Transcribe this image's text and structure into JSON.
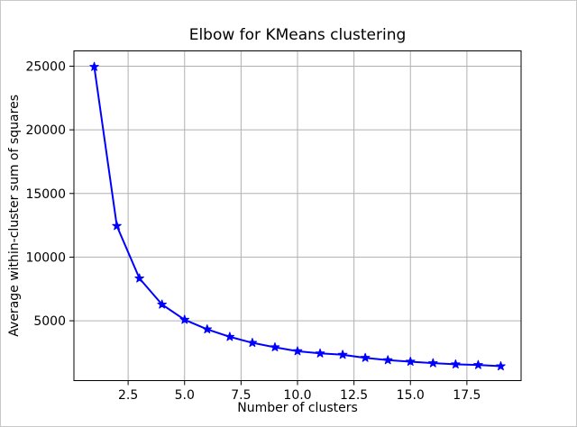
{
  "figure": {
    "background": "#ffffff",
    "border_color": "#c9c9c9"
  },
  "chart_data": {
    "type": "line",
    "title": "Elbow for KMeans clustering",
    "xlabel": "Number of clusters",
    "ylabel": "Average within-cluster sum of squares",
    "series": [
      {
        "name": "average-within-cluster-sum-of-squares",
        "x": [
          1,
          2,
          3,
          4,
          5,
          6,
          7,
          8,
          9,
          10,
          11,
          12,
          13,
          14,
          15,
          16,
          17,
          18,
          19
        ],
        "y": [
          24950,
          12450,
          8330,
          6280,
          5080,
          4330,
          3740,
          3270,
          2920,
          2610,
          2440,
          2330,
          2090,
          1910,
          1790,
          1670,
          1580,
          1530,
          1430
        ]
      }
    ],
    "x_ticks": [
      {
        "value": 2.5,
        "label": "2.5"
      },
      {
        "value": 5.0,
        "label": "5.0"
      },
      {
        "value": 7.5,
        "label": "7.5"
      },
      {
        "value": 10.0,
        "label": "10.0"
      },
      {
        "value": 12.5,
        "label": "12.5"
      },
      {
        "value": 15.0,
        "label": "15.0"
      },
      {
        "value": 17.5,
        "label": "17.5"
      }
    ],
    "y_ticks": [
      {
        "value": 5000,
        "label": "5000"
      },
      {
        "value": 10000,
        "label": "10000"
      },
      {
        "value": 15000,
        "label": "15000"
      },
      {
        "value": 20000,
        "label": "20000"
      },
      {
        "value": 25000,
        "label": "25000"
      }
    ],
    "xlim": [
      0.1,
      19.9
    ],
    "ylim": [
      300,
      26200
    ],
    "grid": true,
    "legend": null,
    "marker": "star",
    "line_color": "#0000ff",
    "marker_color": "#0000ff",
    "grid_color": "#b0b0b0",
    "axis_color": "#000000",
    "text_color": "#000000"
  }
}
